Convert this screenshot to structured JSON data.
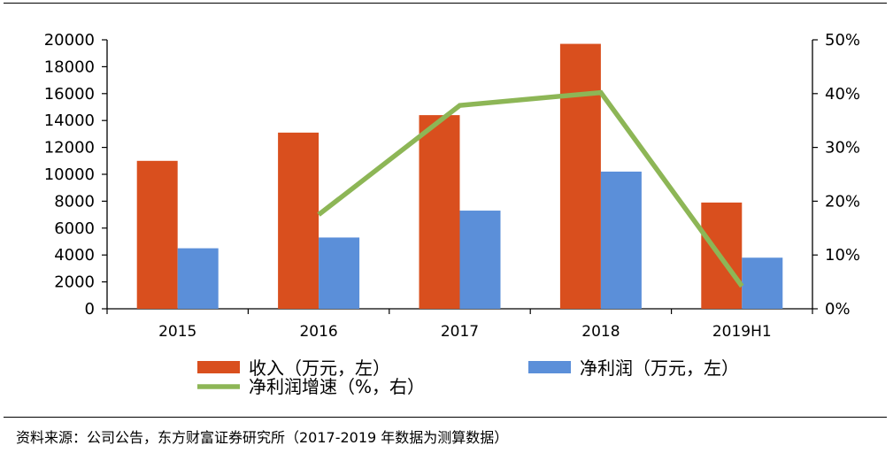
{
  "chart_data": {
    "type": "bar",
    "categories": [
      "2015",
      "2016",
      "2017",
      "2018",
      "2019H1"
    ],
    "series": [
      {
        "name": "收入（万元，左）",
        "kind": "bar",
        "axis": "left",
        "color": "#D94F1E",
        "values": [
          11000,
          13100,
          14400,
          19700,
          7900
        ]
      },
      {
        "name": "净利润（万元，左）",
        "kind": "bar",
        "axis": "left",
        "color": "#5B8FD9",
        "values": [
          4500,
          5300,
          7300,
          10200,
          3800
        ]
      },
      {
        "name": "净利润增速（%，右）",
        "kind": "line",
        "axis": "right",
        "color": "#8DB656",
        "values": [
          null,
          17.5,
          37.8,
          40.2,
          4.2
        ]
      }
    ],
    "y_left": {
      "min": 0,
      "max": 20000,
      "step": 2000,
      "ticks": [
        "0",
        "2000",
        "4000",
        "6000",
        "8000",
        "10000",
        "12000",
        "14000",
        "16000",
        "18000",
        "20000"
      ]
    },
    "y_right": {
      "min": 0,
      "max": 50,
      "step": 10,
      "ticks": [
        "0%",
        "10%",
        "20%",
        "30%",
        "40%",
        "50%"
      ]
    },
    "grid": false,
    "legend_position": "bottom"
  },
  "source_text": "资料来源：公司公告，东方财富证券研究所（2017-2019 年数据为测算数据）"
}
